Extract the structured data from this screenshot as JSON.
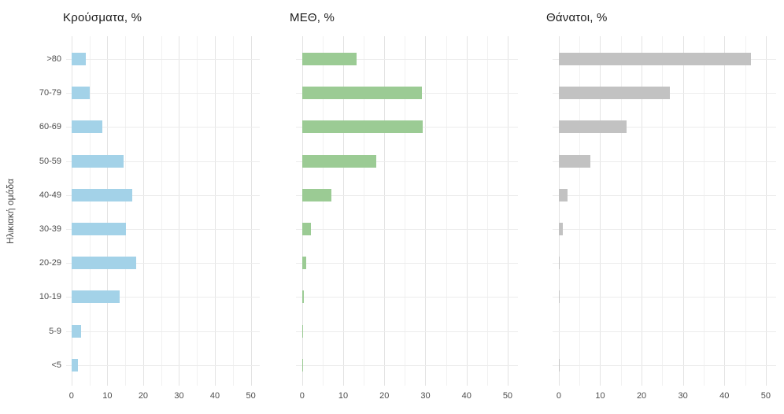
{
  "figure": {
    "y_axis_title": "Ηλικιακή ομάδα"
  },
  "age_groups": [
    ">80",
    "70-79",
    "60-69",
    "50-59",
    "40-49",
    "30-39",
    "20-29",
    "10-19",
    "5-9",
    "<5"
  ],
  "axis": {
    "x_ticks": [
      0,
      10,
      20,
      30,
      40,
      50
    ],
    "x_minor_gridlines": [
      5,
      15,
      25,
      35,
      45
    ],
    "x_domain": [
      -1.5,
      52.5
    ]
  },
  "colors": {
    "cases_bar": "#a3d2e8",
    "icu_bar": "#9bcb94",
    "deaths_bar": "#c2c2c2",
    "grid_major": "#e3e3e3",
    "grid_minor": "#f1f1f1",
    "row_gridline": "#ececec",
    "axis_text": "#4d4d4d",
    "title_text": "#1a1a1a",
    "background": "#ffffff"
  },
  "chart_data": [
    {
      "type": "bar",
      "orientation": "horizontal",
      "title": "Κρούσματα, %",
      "ylabel": "Ηλικιακή ομάδα",
      "xlabel": "",
      "categories": [
        ">80",
        "70-79",
        "60-69",
        "50-59",
        "40-49",
        "30-39",
        "20-29",
        "10-19",
        "5-9",
        "<5"
      ],
      "values": [
        3.9,
        5.1,
        8.6,
        14.5,
        17.0,
        15.2,
        18.0,
        13.5,
        2.7,
        1.7
      ],
      "color": "#a3d2e8",
      "xlim": [
        0,
        52.5
      ],
      "xticks": [
        0,
        10,
        20,
        30,
        40,
        50
      ],
      "grid": "vertical major+minor, horizontal per-row",
      "legend": "none"
    },
    {
      "type": "bar",
      "orientation": "horizontal",
      "title": "ΜΕΘ, %",
      "ylabel": "",
      "xlabel": "",
      "categories": [
        ">80",
        "70-79",
        "60-69",
        "50-59",
        "40-49",
        "30-39",
        "20-29",
        "10-19",
        "5-9",
        "<5"
      ],
      "values": [
        13.3,
        29.2,
        29.4,
        18.1,
        7.1,
        2.2,
        1.0,
        0.4,
        0.2,
        0.3
      ],
      "color": "#9bcb94",
      "xlim": [
        0,
        52.5
      ],
      "xticks": [
        0,
        10,
        20,
        30,
        40,
        50
      ],
      "grid": "vertical major+minor, horizontal per-row",
      "legend": "none"
    },
    {
      "type": "bar",
      "orientation": "horizontal",
      "title": "Θάνατοι, %",
      "ylabel": "",
      "xlabel": "",
      "categories": [
        ">80",
        "70-79",
        "60-69",
        "50-59",
        "40-49",
        "30-39",
        "20-29",
        "10-19",
        "5-9",
        "<5"
      ],
      "values": [
        46.4,
        26.9,
        16.3,
        7.6,
        2.1,
        0.9,
        0.2,
        0.2,
        0,
        0.2
      ],
      "color": "#c2c2c2",
      "xlim": [
        0,
        52.5
      ],
      "xticks": [
        0,
        10,
        20,
        30,
        40,
        50
      ],
      "grid": "vertical major+minor, horizontal per-row",
      "legend": "none"
    }
  ]
}
